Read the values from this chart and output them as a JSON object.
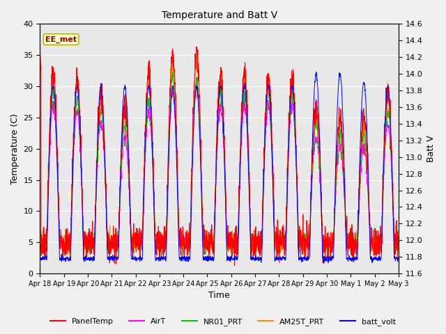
{
  "title": "Temperature and Batt V",
  "xlabel": "Time",
  "ylabel_left": "Temperature (C)",
  "ylabel_right": "Batt V",
  "annotation": "EE_met",
  "ylim_left": [
    0,
    40
  ],
  "ylim_right": [
    11.6,
    14.6
  ],
  "x_tick_labels": [
    "Apr 18",
    "Apr 19",
    "Apr 20",
    "Apr 21",
    "Apr 22",
    "Apr 23",
    "Apr 24",
    "Apr 25",
    "Apr 26",
    "Apr 27",
    "Apr 28",
    "Apr 29",
    "Apr 30",
    "May 1",
    "May 2",
    "May 3"
  ],
  "legend_entries": [
    "PanelTemp",
    "AirT",
    "NR01_PRT",
    "AM25T_PRT",
    "batt_volt"
  ],
  "legend_colors": [
    "#ff0000",
    "#ff00ff",
    "#00cc00",
    "#ff8800",
    "#0000ff"
  ],
  "fig_bg": "#f0f0f0",
  "ax_bg": "#e8e8e8",
  "n_days": 15,
  "pts_per_day": 144,
  "annotation_color": "#8b0000",
  "annotation_bg": "#ffffcc",
  "annotation_edge": "#aaa800",
  "left_yticks": [
    0,
    5,
    10,
    15,
    20,
    25,
    30,
    35,
    40
  ],
  "right_yticks": [
    11.6,
    11.8,
    12.0,
    12.2,
    12.4,
    12.6,
    12.8,
    13.0,
    13.2,
    13.4,
    13.6,
    13.8,
    14.0,
    14.2,
    14.4,
    14.6
  ]
}
